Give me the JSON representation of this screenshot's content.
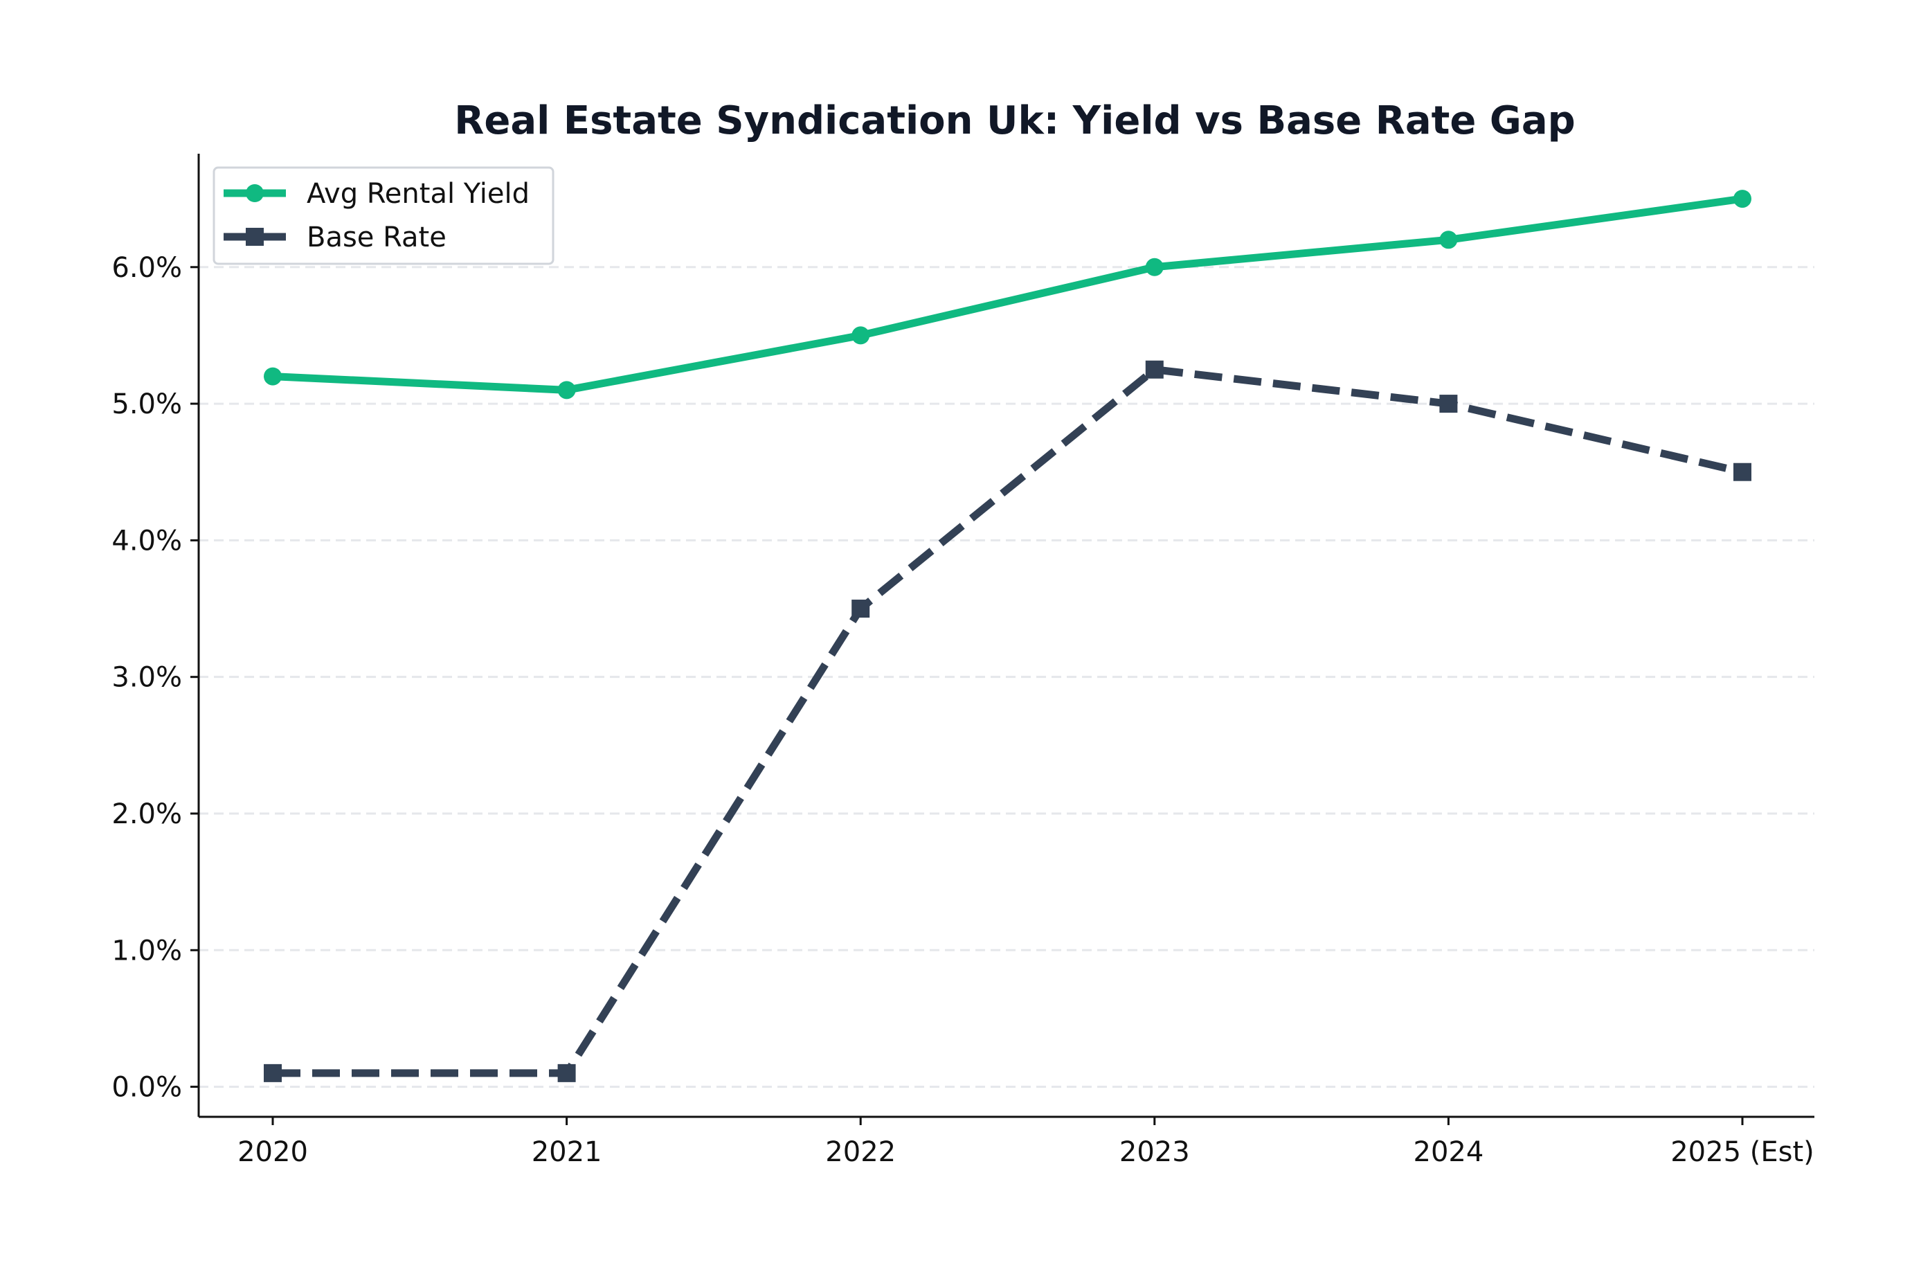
{
  "chart_data": {
    "type": "line",
    "title": "Real Estate Syndication Uk: Yield vs Base Rate Gap",
    "xlabel": "",
    "ylabel": "",
    "categories": [
      "2020",
      "2021",
      "2022",
      "2023",
      "2024",
      "2025 (Est)"
    ],
    "series": [
      {
        "name": "Avg Rental Yield",
        "values": [
          5.2,
          5.1,
          5.5,
          6.0,
          6.2,
          6.5
        ],
        "color": "#10b981",
        "line_style": "solid",
        "marker": "circle"
      },
      {
        "name": "Base Rate",
        "values": [
          0.1,
          0.1,
          3.5,
          5.25,
          5.0,
          4.5
        ],
        "color": "#334155",
        "line_style": "dashed",
        "marker": "square"
      }
    ],
    "ylim": [
      -0.22,
      6.83
    ],
    "yticks": [
      0,
      1,
      2,
      3,
      4,
      5,
      6
    ],
    "ytick_labels": [
      "0.0%",
      "1.0%",
      "2.0%",
      "3.0%",
      "4.0%",
      "5.0%",
      "6.0%"
    ],
    "grid": "horizontal dashed",
    "legend_position": "top-left"
  }
}
